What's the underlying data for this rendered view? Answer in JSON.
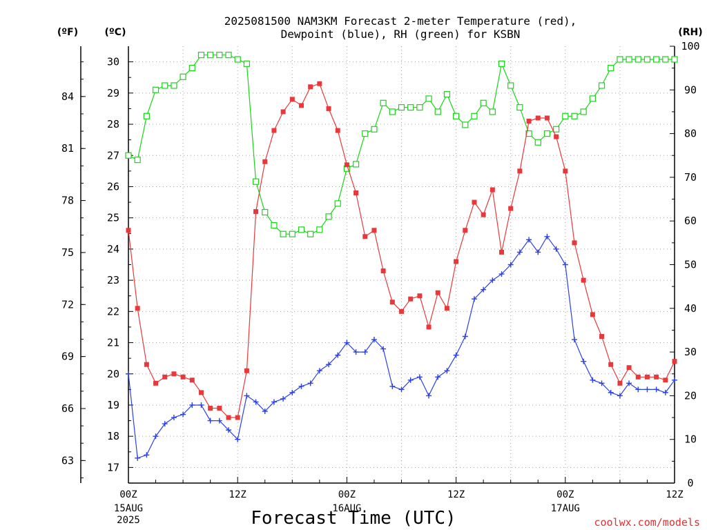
{
  "chart_data": {
    "type": "line",
    "title_line1": "2025081500 NAM3KM Forecast 2-meter Temperature (red),",
    "title_line2": "Dewpoint (blue), RH (green) for KSBN",
    "xlabel": "Forecast Time (UTC)",
    "credit": "coolwx.com/models",
    "units": {
      "fahrenheit": "(ºF)",
      "celsius": "(ºC)",
      "rh": "(RH)"
    },
    "x_hours_range": [
      0,
      60
    ],
    "x_ticks": [
      {
        "hour": 0,
        "label": "00Z",
        "sub1": "15AUG",
        "sub2": "2025"
      },
      {
        "hour": 12,
        "label": "12Z",
        "sub1": "",
        "sub2": ""
      },
      {
        "hour": 24,
        "label": "00Z",
        "sub1": "16AUG",
        "sub2": ""
      },
      {
        "hour": 36,
        "label": "12Z",
        "sub1": "",
        "sub2": ""
      },
      {
        "hour": 48,
        "label": "00Z",
        "sub1": "17AUG",
        "sub2": ""
      },
      {
        "hour": 60,
        "label": "12Z",
        "sub1": "",
        "sub2": ""
      }
    ],
    "y_celsius": {
      "range": [
        16.5,
        30.5
      ],
      "ticks": [
        "17",
        "18",
        "19",
        "20",
        "21",
        "22",
        "23",
        "24",
        "25",
        "26",
        "27",
        "28",
        "29",
        "30"
      ]
    },
    "y_fahrenheit": {
      "ticks": [
        "63",
        "66",
        "69",
        "72",
        "75",
        "78",
        "81",
        "84"
      ]
    },
    "y_rh": {
      "range": [
        0,
        100
      ],
      "ticks": [
        "0",
        "10",
        "20",
        "30",
        "40",
        "50",
        "60",
        "70",
        "80",
        "90",
        "100"
      ]
    },
    "grid": true,
    "colors": {
      "temperature": "#e8383a",
      "dewpoint": "#2a40e8",
      "rh": "#16d616"
    },
    "series": [
      {
        "name": "Temperature",
        "units": "C",
        "values": [
          24.6,
          22.1,
          20.3,
          19.7,
          19.9,
          20.0,
          19.9,
          19.8,
          19.4,
          18.9,
          18.9,
          18.6,
          18.6,
          20.1,
          25.2,
          26.8,
          27.8,
          28.4,
          28.8,
          28.6,
          29.2,
          29.3,
          28.5,
          27.8,
          26.7,
          25.8,
          24.4,
          24.6,
          23.3,
          22.3,
          22.0,
          22.4,
          22.5,
          21.5,
          22.6,
          22.1,
          23.6,
          24.6,
          25.5,
          25.1,
          25.9,
          23.9,
          25.3,
          26.5,
          28.1,
          28.2,
          28.2,
          27.6,
          26.5,
          24.2,
          23.0,
          21.9,
          21.2,
          20.3,
          19.7,
          20.2,
          19.9,
          19.9,
          19.9,
          19.8,
          20.4
        ]
      },
      {
        "name": "Dewpoint",
        "units": "C",
        "values": [
          20.0,
          17.3,
          17.4,
          18.0,
          18.4,
          18.6,
          18.7,
          19.0,
          19.0,
          18.5,
          18.5,
          18.2,
          17.9,
          19.3,
          19.1,
          18.8,
          19.1,
          19.2,
          19.4,
          19.6,
          19.7,
          20.1,
          20.3,
          20.6,
          21.0,
          20.7,
          20.7,
          21.1,
          20.8,
          19.6,
          19.5,
          19.8,
          19.9,
          19.3,
          19.9,
          20.1,
          20.6,
          21.2,
          22.4,
          22.7,
          23.0,
          23.2,
          23.5,
          23.9,
          24.3,
          23.9,
          24.4,
          24.0,
          23.5,
          21.1,
          20.4,
          19.8,
          19.7,
          19.4,
          19.3,
          19.7,
          19.5,
          19.5,
          19.5,
          19.4,
          19.8
        ]
      },
      {
        "name": "RH",
        "units": "%",
        "values": [
          75,
          74,
          84,
          90,
          91,
          91,
          93,
          95,
          98,
          98,
          98,
          98,
          97,
          96,
          69,
          62,
          59,
          57,
          57,
          58,
          57,
          58,
          61,
          64,
          72,
          73,
          80,
          81,
          87,
          85,
          86,
          86,
          86,
          88,
          85,
          89,
          84,
          82,
          84,
          87,
          85,
          96,
          91,
          86,
          80,
          78,
          80,
          81,
          84,
          84,
          85,
          88,
          91,
          95,
          97,
          97,
          97,
          97,
          97,
          97,
          97
        ]
      }
    ]
  }
}
